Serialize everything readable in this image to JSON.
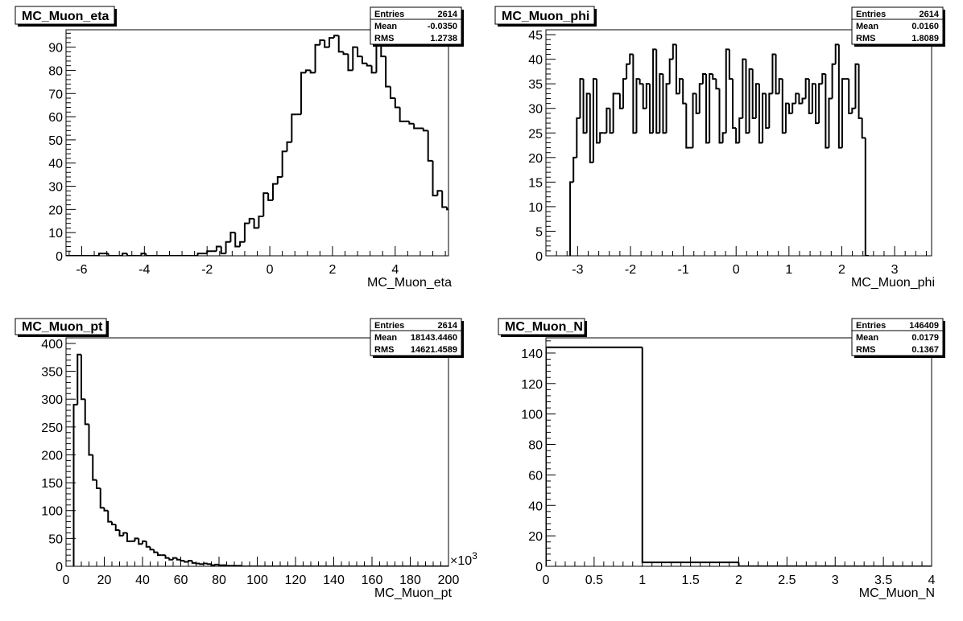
{
  "chart_data": [
    {
      "type": "bar",
      "title": "MC_Muon_eta",
      "xlabel": "MC_Muon_eta",
      "ylabel": "",
      "xlim": [
        -6.5,
        5.7
      ],
      "ylim": [
        0,
        97.5
      ],
      "x_ticks": [
        "-6",
        "-4",
        "-2",
        "0",
        "2",
        "4"
      ],
      "y_ticks": [
        "0",
        "10",
        "20",
        "30",
        "40",
        "50",
        "60",
        "70",
        "80",
        "90"
      ],
      "stats": {
        "entries_label": "Entries",
        "entries": "2614",
        "mean_label": "Mean",
        "mean": "-0.0350",
        "rms_label": "RMS",
        "rms": "1.2738"
      },
      "bin_start": -6.5,
      "bin_width": 0.15,
      "values": [
        0,
        0,
        0,
        0,
        0,
        0,
        0,
        1,
        1,
        0,
        0,
        0,
        1,
        0,
        0,
        0,
        1,
        0,
        0,
        0,
        0,
        0,
        0,
        0,
        0,
        0,
        0,
        0,
        1,
        1,
        2,
        2,
        4,
        1,
        6,
        10,
        4,
        6,
        14,
        16,
        12,
        17,
        27,
        24,
        31,
        34,
        45,
        49,
        61,
        61,
        79,
        80,
        79,
        91,
        93,
        90,
        94,
        95,
        88,
        87,
        80,
        90,
        86,
        83,
        82,
        79,
        93,
        86,
        73,
        68,
        64,
        58,
        58,
        57,
        55,
        55,
        54,
        41,
        26,
        28,
        21,
        20,
        15,
        7,
        8,
        3,
        3,
        2,
        0,
        1,
        0,
        0,
        1,
        0,
        0,
        0,
        0,
        0,
        0,
        0,
        0,
        0,
        0,
        0,
        0,
        0,
        0,
        0,
        0,
        0,
        0,
        0
      ]
    },
    {
      "type": "bar",
      "title": "MC_Muon_phi",
      "xlabel": "MC_Muon_phi",
      "ylabel": "",
      "xlim": [
        -3.6,
        3.7
      ],
      "ylim": [
        0,
        46
      ],
      "x_ticks": [
        "-3",
        "-2",
        "-1",
        "0",
        "1",
        "2",
        "3"
      ],
      "y_ticks": [
        "0",
        "5",
        "10",
        "15",
        "20",
        "25",
        "30",
        "35",
        "40",
        "45"
      ],
      "stats": {
        "entries_label": "Entries",
        "entries": "2614",
        "mean_label": "Mean",
        "mean": "0.0160",
        "rms_label": "RMS",
        "rms": "1.8089"
      },
      "bin_start": -3.1416,
      "bin_width": 0.0628,
      "values": [
        15,
        20,
        28,
        36,
        25,
        33,
        19,
        36,
        23,
        25,
        25,
        30,
        25,
        33,
        33,
        30,
        36,
        39,
        41,
        25,
        36,
        35,
        30,
        35,
        25,
        42,
        25,
        37,
        25,
        35,
        40,
        43,
        33,
        36,
        31,
        22,
        22,
        33,
        29,
        35,
        37,
        23,
        37,
        36,
        34,
        23,
        25,
        42,
        36,
        26,
        23,
        28,
        40,
        25,
        38,
        28,
        35,
        23,
        33,
        26,
        33,
        41,
        33,
        36,
        25,
        31,
        29,
        31,
        33,
        31,
        32,
        36,
        29,
        35,
        27,
        35,
        37,
        22,
        32,
        39,
        43,
        22,
        36,
        36,
        29,
        30,
        39,
        28,
        24,
        0
      ]
    },
    {
      "type": "bar",
      "title": "MC_Muon_pt",
      "xlabel": "MC_Muon_pt",
      "ylabel": "",
      "x_multiplier": "×10",
      "x_multiplier_exp": "3",
      "xlim": [
        0,
        200
      ],
      "ylim": [
        0,
        410
      ],
      "x_ticks": [
        "0",
        "20",
        "40",
        "60",
        "80",
        "100",
        "120",
        "140",
        "160",
        "180",
        "200"
      ],
      "y_ticks": [
        "0",
        "50",
        "100",
        "150",
        "200",
        "250",
        "300",
        "350",
        "400"
      ],
      "stats": {
        "entries_label": "Entries",
        "entries": "2614",
        "mean_label": "Mean",
        "mean": "18143.4460",
        "rms_label": "RMS",
        "rms": "14621.4589"
      },
      "bin_start": 4,
      "bin_width": 2,
      "values": [
        290,
        380,
        300,
        255,
        200,
        155,
        140,
        105,
        100,
        80,
        75,
        65,
        55,
        60,
        45,
        45,
        50,
        40,
        45,
        35,
        30,
        25,
        20,
        20,
        15,
        12,
        15,
        12,
        10,
        8,
        10,
        6,
        5,
        4,
        5,
        4,
        2,
        3,
        2,
        2,
        1,
        1,
        1,
        1,
        0,
        0,
        0,
        0,
        0,
        0,
        0,
        0,
        0,
        0,
        0,
        0,
        0,
        0,
        0,
        0,
        0,
        0,
        0,
        0,
        0,
        0,
        0,
        0,
        0,
        0,
        0,
        0,
        0,
        0,
        0,
        0,
        0,
        0,
        0,
        0,
        0,
        0,
        0,
        0,
        0,
        0,
        0,
        0,
        0,
        0,
        0,
        0,
        0,
        0,
        0,
        0,
        0,
        0
      ]
    },
    {
      "type": "bar",
      "title": "MC_Muon_N",
      "xlabel": "MC_Muon_N",
      "ylabel": "",
      "xlim": [
        0,
        4
      ],
      "ylim": [
        0,
        150
      ],
      "x_ticks": [
        "0",
        "0.5",
        "1",
        "1.5",
        "2",
        "2.5",
        "3",
        "3.5",
        "4"
      ],
      "y_ticks": [
        "0",
        "20",
        "40",
        "60",
        "80",
        "100",
        "120",
        "140"
      ],
      "stats": {
        "entries_label": "Entries",
        "entries": "146409",
        "mean_label": "Mean",
        "mean": "0.0179",
        "rms_label": "RMS",
        "rms": "0.1367"
      },
      "bin_start": 0,
      "bin_width": 1,
      "values": [
        143.8,
        2.6,
        0.04,
        0
      ]
    }
  ]
}
